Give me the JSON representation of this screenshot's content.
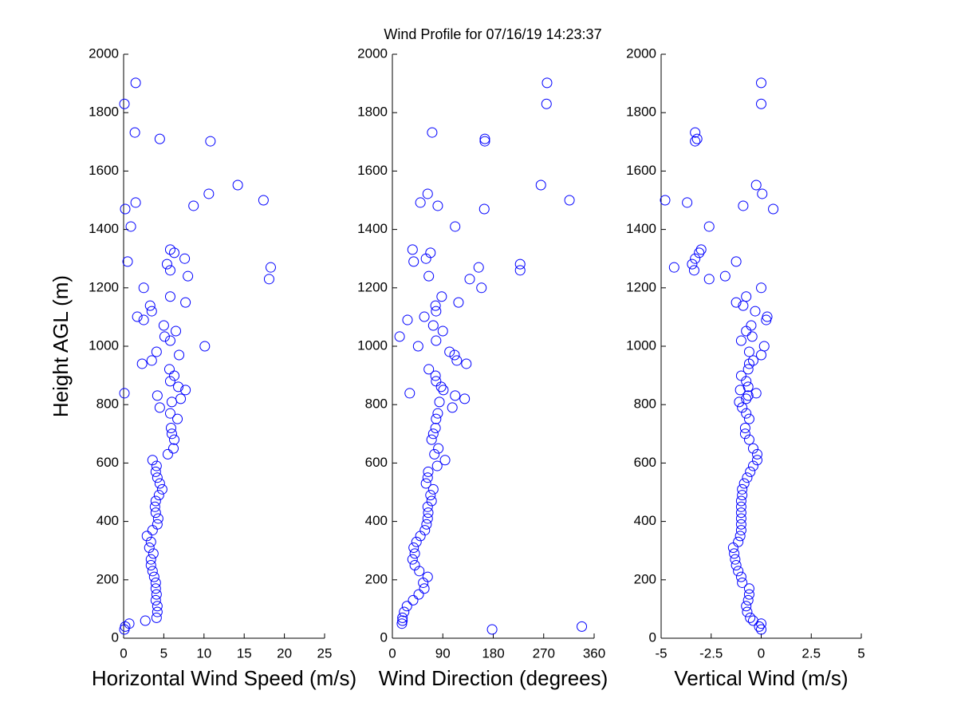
{
  "chart_data": [
    {
      "type": "scatter",
      "title": "Wind Profile for  07/16/19 14:23:37",
      "xlabel": "Horizontal Wind Speed (m/s)",
      "ylabel": "Height AGL (m)",
      "color": "#0000ff",
      "xlim": [
        0,
        25
      ],
      "xticks": [
        0,
        5,
        10,
        15,
        20,
        25
      ],
      "ylim": [
        0,
        2000
      ],
      "yticks": [
        0,
        200,
        400,
        600,
        800,
        1000,
        1200,
        1400,
        1600,
        1800,
        2000
      ],
      "x": [
        1.5,
        0.1,
        1.4,
        4.5,
        10.8,
        14.2,
        10.6,
        17.4,
        1.5,
        8.7,
        0.2,
        0.9,
        5.8,
        6.3,
        7.6,
        0.5,
        5.4,
        18.3,
        5.8,
        8.0,
        18.1,
        2.5,
        5.8,
        7.7,
        3.3,
        3.5,
        1.7,
        2.5,
        5.0,
        6.5,
        5.1,
        5.8,
        10.1,
        4.1,
        6.9,
        3.5,
        2.3,
        5.7,
        6.3,
        5.8,
        6.8,
        7.7,
        0.1,
        4.2,
        7.1,
        6.0,
        4.5,
        5.8,
        6.7,
        5.9,
        6.0,
        6.3,
        6.2,
        5.5,
        3.6,
        4.1,
        4.0,
        4.2,
        4.5,
        4.8,
        4.4,
        4.0,
        3.9,
        4.0,
        4.3,
        4.2,
        3.6,
        2.9,
        3.4,
        3.2,
        3.7,
        3.4,
        3.4,
        3.6,
        3.8,
        4.0,
        4.0,
        4.1,
        4.0,
        4.2,
        4.2,
        4.1,
        2.7,
        0.7,
        0.2,
        0.1
      ],
      "y": [
        1902,
        1830,
        1732,
        1710,
        1702,
        1552,
        1522,
        1500,
        1492,
        1481,
        1470,
        1410,
        1331,
        1320,
        1300,
        1290,
        1281,
        1270,
        1260,
        1240,
        1230,
        1200,
        1170,
        1150,
        1139,
        1120,
        1101,
        1090,
        1071,
        1052,
        1033,
        1019,
        1000,
        981,
        970,
        951,
        940,
        921,
        899,
        880,
        861,
        850,
        839,
        831,
        820,
        809,
        790,
        770,
        751,
        720,
        700,
        680,
        650,
        630,
        610,
        590,
        570,
        550,
        530,
        510,
        490,
        470,
        450,
        430,
        410,
        390,
        370,
        350,
        330,
        310,
        290,
        270,
        250,
        230,
        210,
        190,
        170,
        150,
        130,
        110,
        90,
        70,
        60,
        50,
        40,
        30
      ]
    },
    {
      "type": "scatter",
      "xlabel": "Wind Direction (degrees)",
      "color": "#0000ff",
      "xlim": [
        0,
        360
      ],
      "xticks": [
        0,
        90,
        180,
        270,
        360
      ],
      "ylim": [
        0,
        2000
      ],
      "yticks": [
        0,
        200,
        400,
        600,
        800,
        1000,
        1200,
        1400,
        1600,
        1800,
        2000
      ],
      "x": [
        276,
        275,
        71,
        165,
        165,
        265,
        63,
        316,
        50,
        81,
        164,
        112,
        36,
        68,
        60,
        38,
        228,
        154,
        228,
        65,
        138,
        159,
        88,
        118,
        77,
        78,
        57,
        27,
        73,
        90,
        13,
        78,
        46,
        102,
        111,
        115,
        132,
        65,
        77,
        78,
        87,
        91,
        31,
        112,
        129,
        84,
        107,
        81,
        78,
        77,
        73,
        70,
        82,
        75,
        94,
        80,
        64,
        63,
        60,
        73,
        68,
        70,
        63,
        64,
        63,
        61,
        58,
        50,
        43,
        38,
        40,
        36,
        40,
        48,
        63,
        55,
        57,
        47,
        37,
        26,
        21,
        18,
        18,
        17,
        338,
        178
      ],
      "y": [
        1902,
        1830,
        1732,
        1710,
        1702,
        1552,
        1522,
        1500,
        1492,
        1481,
        1470,
        1410,
        1331,
        1320,
        1300,
        1290,
        1281,
        1270,
        1260,
        1240,
        1230,
        1200,
        1170,
        1150,
        1139,
        1120,
        1101,
        1090,
        1071,
        1052,
        1033,
        1019,
        1000,
        981,
        970,
        951,
        940,
        921,
        899,
        880,
        861,
        850,
        839,
        831,
        820,
        809,
        790,
        770,
        751,
        720,
        700,
        680,
        650,
        630,
        610,
        590,
        570,
        550,
        530,
        510,
        490,
        470,
        450,
        430,
        410,
        390,
        370,
        350,
        330,
        310,
        290,
        270,
        250,
        230,
        210,
        190,
        170,
        150,
        130,
        110,
        90,
        70,
        60,
        50,
        40,
        30
      ]
    },
    {
      "type": "scatter",
      "xlabel": "Vertical Wind (m/s)",
      "color": "#0000ff",
      "xlim": [
        -5,
        5
      ],
      "xticks": [
        -5,
        -2.5,
        0,
        2.5,
        5
      ],
      "ylim": [
        0,
        2000
      ],
      "yticks": [
        0,
        200,
        400,
        600,
        800,
        1000,
        1200,
        1400,
        1600,
        1800,
        2000
      ],
      "x": [
        0,
        0,
        -3.3,
        -3.2,
        -3.3,
        -0.25,
        0.05,
        -4.8,
        -3.7,
        -0.9,
        0.6,
        -2.6,
        -3.0,
        -3.1,
        -3.3,
        -1.25,
        -3.45,
        -4.35,
        -3.35,
        -1.8,
        -2.6,
        0,
        -0.75,
        -1.25,
        -0.9,
        -0.3,
        0.3,
        0.25,
        -0.5,
        -0.75,
        -0.45,
        -1.0,
        0.15,
        -0.6,
        0,
        -0.4,
        -0.6,
        -0.65,
        -1.0,
        -0.75,
        -0.65,
        -1.05,
        -0.25,
        -0.65,
        -0.75,
        -1.1,
        -0.95,
        -0.75,
        -0.6,
        -0.8,
        -0.8,
        -0.6,
        -0.4,
        -0.2,
        -0.2,
        -0.4,
        -0.55,
        -0.7,
        -0.85,
        -0.95,
        -0.95,
        -1.0,
        -1.0,
        -1.0,
        -1.0,
        -1.0,
        -1.0,
        -1.05,
        -1.15,
        -1.4,
        -1.35,
        -1.3,
        -1.25,
        -1.15,
        -1.0,
        -0.95,
        -0.6,
        -0.6,
        -0.65,
        -0.75,
        -0.7,
        -0.55,
        -0.4,
        0,
        -0.1,
        0
      ],
      "y": [
        1902,
        1830,
        1732,
        1710,
        1702,
        1552,
        1522,
        1500,
        1492,
        1481,
        1470,
        1410,
        1331,
        1320,
        1300,
        1290,
        1281,
        1270,
        1260,
        1240,
        1230,
        1200,
        1170,
        1150,
        1139,
        1120,
        1101,
        1090,
        1071,
        1052,
        1033,
        1019,
        1000,
        981,
        970,
        951,
        940,
        921,
        899,
        880,
        861,
        850,
        839,
        831,
        820,
        809,
        790,
        770,
        751,
        720,
        700,
        680,
        650,
        630,
        610,
        590,
        570,
        550,
        530,
        510,
        490,
        470,
        450,
        430,
        410,
        390,
        370,
        350,
        330,
        310,
        290,
        270,
        250,
        230,
        210,
        190,
        170,
        150,
        130,
        110,
        90,
        70,
        60,
        50,
        40,
        30
      ]
    }
  ]
}
